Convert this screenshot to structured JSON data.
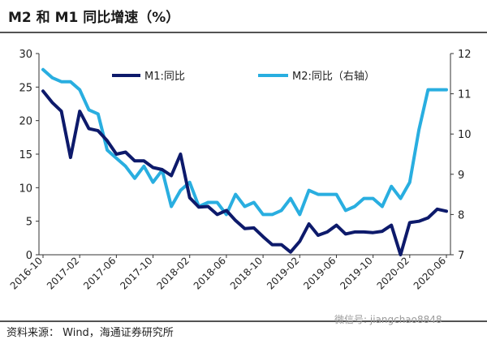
{
  "chart_data": {
    "type": "line",
    "title": "M2 和 M1 同比增速（%）",
    "x": [
      "2016-10",
      "2016-11",
      "2016-12",
      "2017-01",
      "2017-02",
      "2017-03",
      "2017-04",
      "2017-05",
      "2017-06",
      "2017-07",
      "2017-08",
      "2017-09",
      "2017-10",
      "2017-11",
      "2017-12",
      "2018-01",
      "2018-02",
      "2018-03",
      "2018-04",
      "2018-05",
      "2018-06",
      "2018-07",
      "2018-08",
      "2018-09",
      "2018-10",
      "2018-11",
      "2018-12",
      "2019-01",
      "2019-02",
      "2019-03",
      "2019-04",
      "2019-05",
      "2019-06",
      "2019-07",
      "2019-08",
      "2019-09",
      "2019-10",
      "2019-11",
      "2019-12",
      "2020-01",
      "2020-02",
      "2020-03",
      "2020-04",
      "2020-05",
      "2020-06"
    ],
    "x_tick_labels": [
      "2016-10",
      "2017-02",
      "2017-06",
      "2017-10",
      "2018-02",
      "2018-06",
      "2018-10",
      "2019-02",
      "2019-06",
      "2019-10",
      "2020-02",
      "2020-06"
    ],
    "left_axis": {
      "min": 0,
      "max": 30,
      "ticks": [
        "0",
        "5",
        "10",
        "15",
        "20",
        "25",
        "30"
      ]
    },
    "right_axis": {
      "min": 7,
      "max": 12,
      "ticks": [
        "7",
        "8",
        "9",
        "10",
        "11",
        "12"
      ]
    },
    "series": [
      {
        "name": "M1:同比",
        "axis": "left",
        "color": "#0d1a6b",
        "values": [
          24.4,
          22.7,
          21.4,
          14.5,
          21.4,
          18.8,
          18.5,
          17.0,
          15.0,
          15.3,
          14.0,
          14.0,
          13.0,
          12.7,
          11.8,
          15.0,
          8.5,
          7.1,
          7.2,
          6.0,
          6.6,
          5.1,
          3.9,
          4.0,
          2.7,
          1.5,
          1.5,
          0.4,
          2.0,
          4.6,
          2.9,
          3.4,
          4.4,
          3.1,
          3.4,
          3.4,
          3.3,
          3.5,
          4.4,
          0.0,
          4.8,
          5.0,
          5.5,
          6.8,
          6.5
        ]
      },
      {
        "name": "M2:同比（右轴）",
        "axis": "right",
        "color": "#29aee0",
        "values": [
          11.6,
          11.4,
          11.3,
          11.3,
          11.1,
          10.6,
          10.5,
          9.6,
          9.4,
          9.2,
          8.9,
          9.2,
          8.8,
          9.1,
          8.2,
          8.6,
          8.8,
          8.2,
          8.3,
          8.3,
          8.0,
          8.5,
          8.2,
          8.3,
          8.0,
          8.0,
          8.1,
          8.4,
          8.0,
          8.6,
          8.5,
          8.5,
          8.5,
          8.1,
          8.2,
          8.4,
          8.4,
          8.2,
          8.7,
          8.4,
          8.8,
          10.1,
          11.1,
          11.1,
          11.1
        ]
      }
    ],
    "legend_position": "top",
    "grid": false
  },
  "footer": {
    "source": "资料来源：   Wind，海通证券研究所",
    "watermark": "微信号: jiangchao8848"
  }
}
